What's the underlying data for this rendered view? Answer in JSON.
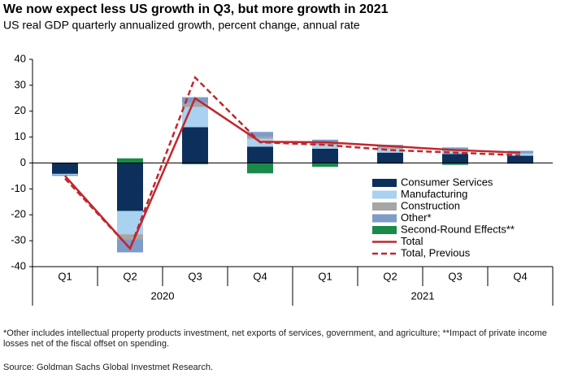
{
  "chart_data": {
    "type": "bar",
    "title": "We now expect less US growth in Q3, but more growth in 2021",
    "subtitle": "US real GDP quarterly annualized growth, percent change, annual rate",
    "categories": [
      "Q1",
      "Q2",
      "Q3",
      "Q4",
      "Q1",
      "Q2",
      "Q3",
      "Q4"
    ],
    "groups": [
      "2020",
      "2021"
    ],
    "ylim": [
      -40,
      40
    ],
    "yticks": [
      40,
      30,
      20,
      10,
      0,
      -10,
      -20,
      -30,
      -40
    ],
    "legend": "lower-right",
    "series": [
      {
        "name": "Consumer Services",
        "type": "bar",
        "color": "#0d2f5c",
        "values": [
          -4.2,
          -18.5,
          13.8,
          6.3,
          5.5,
          4,
          3.5,
          2.8
        ]
      },
      {
        "name": "Manufacturing",
        "type": "bar",
        "color": "#a9d1f0",
        "values": [
          -0.3,
          -9,
          7.8,
          3,
          1.5,
          1.5,
          1,
          0.8
        ]
      },
      {
        "name": "Construction",
        "type": "bar",
        "color": "#a6a6a6",
        "values": [
          0,
          -2,
          1.5,
          0.7,
          0.5,
          0.5,
          0.5,
          0.3
        ]
      },
      {
        "name": "Other*",
        "type": "bar",
        "color": "#7f9cc8",
        "values": [
          -0.5,
          -5,
          2.3,
          2,
          1.5,
          1,
          1,
          0.8
        ]
      },
      {
        "name": "Second-Round Effects**",
        "type": "bar",
        "color": "#1a8a4a",
        "values": [
          0,
          1.8,
          -0.5,
          -4,
          -1.5,
          -0.3,
          -0.7,
          -0.3
        ]
      },
      {
        "name": "Total",
        "type": "line",
        "color": "#c0272d",
        "dashed": false,
        "values": [
          -5,
          -33,
          25,
          8.2,
          8,
          6.5,
          5,
          4
        ]
      },
      {
        "name": "Total, Previous",
        "type": "line",
        "color": "#c0272d",
        "dashed": true,
        "values": [
          -6,
          -33,
          33,
          8,
          7,
          5,
          4,
          3
        ]
      }
    ],
    "footnote": "*Other includes intellectual property products investment, net exports of services, government, and agriculture; **Impact of private income losses net of the fiscal offset on spending.",
    "source": "Source: Goldman Sachs Global Investmet Research."
  }
}
